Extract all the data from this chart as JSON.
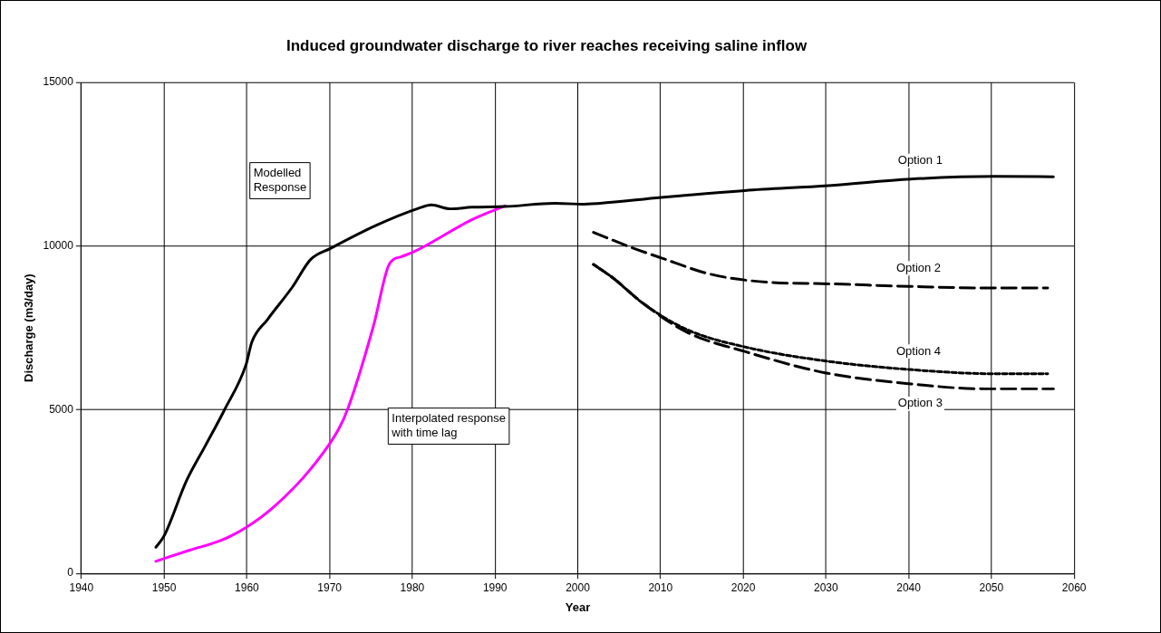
{
  "chart_data": {
    "type": "line",
    "title": "Induced groundwater discharge to river reaches receiving saline inflow",
    "xlabel": "Year",
    "ylabel": "Discharge (m3/day)",
    "xlim": [
      1940,
      2060
    ],
    "xticks": [
      1940,
      1950,
      1960,
      1970,
      1980,
      1990,
      2000,
      2010,
      2020,
      2030,
      2040,
      2050,
      2060
    ],
    "ylim": [
      0,
      15000
    ],
    "yticks": [
      0,
      5000,
      10000,
      15000
    ],
    "grid": true,
    "legend": false,
    "marker": "none",
    "series": [
      {
        "color": "#000000",
        "line_style": "solid",
        "x": [
          1949.0,
          1950.0,
          1952.7,
          1955.0,
          1957.3,
          1959.9,
          1960.6,
          1962.5,
          1965.5,
          1967.7,
          1970.1,
          1975.5,
          1980.8,
          1982.3,
          1984.6,
          1987.2,
          1991.2,
          1997.2,
          2000.5
        ],
        "values": [
          800,
          1150,
          2830,
          3910,
          5000,
          6380,
          7070,
          7760,
          8750,
          9590,
          9930,
          10620,
          11160,
          11260,
          11140,
          11190,
          11210,
          11310,
          11280
        ]
      },
      {
        "color": "#ff00ff",
        "line_style": "solid",
        "x": [
          1949.0,
          1953.1,
          1956.9,
          1959.9,
          1963.3,
          1967.8,
          1971.1,
          1972.3,
          1975.3,
          1977.2,
          1978.7,
          1980.2,
          1987.3,
          1991.2
        ],
        "values": [
          370,
          710,
          1010,
          1400,
          2040,
          3220,
          4410,
          5100,
          7560,
          9440,
          9680,
          9830,
          10820,
          11230
        ]
      },
      {
        "name": "Option 1",
        "color": "#000000",
        "line_style": "solid",
        "x": [
          2000.5,
          2002.7,
          2010.1,
          2020.2,
          2030.3,
          2040.3,
          2050.4,
          2057.5
        ],
        "values": [
          11280,
          11310,
          11490,
          11700,
          11850,
          12050,
          12130,
          12120
        ]
      },
      {
        "name": "Option 2",
        "color": "#000000",
        "line_style": "dashed",
        "x": [
          2001.9,
          2006.8,
          2010.1,
          2016.1,
          2022.9,
          2030.3,
          2040.1,
          2050.4,
          2056.8
        ],
        "values": [
          10420,
          9930,
          9640,
          9140,
          8900,
          8850,
          8770,
          8720,
          8720
        ]
      },
      {
        "name": "Option 4",
        "color": "#000000",
        "line_style": "dotted",
        "x": [
          2001.9,
          2004.2,
          2007.9,
          2013.2,
          2020.2,
          2030.3,
          2040.1,
          2050.4,
          2056.8
        ],
        "values": [
          9440,
          9040,
          8250,
          7450,
          6920,
          6480,
          6230,
          6100,
          6100
        ]
      },
      {
        "name": "Option 3",
        "color": "#000000",
        "line_style": "dashed",
        "x": [
          2001.9,
          2004.2,
          2007.9,
          2013.2,
          2020.2,
          2029.9,
          2040.3,
          2049.1,
          2057.5
        ],
        "values": [
          9440,
          9040,
          8250,
          7370,
          6780,
          6130,
          5790,
          5640,
          5640
        ]
      }
    ],
    "annotations": [
      "Modelled Response",
      "Interpolated response with time lag"
    ]
  }
}
